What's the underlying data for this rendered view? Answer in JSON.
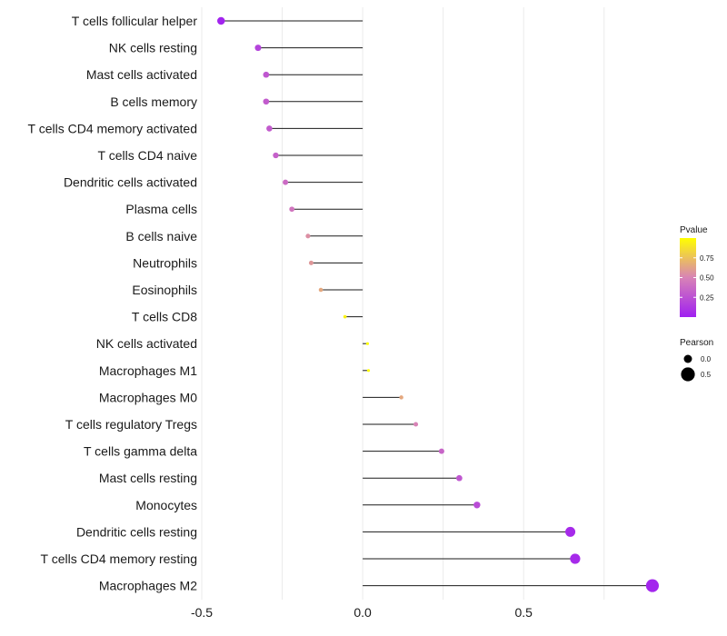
{
  "chart_data": {
    "type": "lollipop",
    "title": "",
    "xlabel": "",
    "ylabel": "",
    "xlim": [
      -0.5,
      0.92
    ],
    "x_ticks": [
      -0.5,
      0.0,
      0.5
    ],
    "x_tick_labels": [
      "-0.5",
      "0.0",
      "0.5"
    ],
    "x_minor_gridlines": [
      -0.25,
      0.25,
      0.75
    ],
    "baseline": 0,
    "categories": [
      "T cells follicular helper",
      "NK cells resting",
      "Mast cells activated",
      "B cells memory",
      "T cells CD4 memory activated",
      "T cells CD4 naive",
      "Dendritic cells activated",
      "Plasma cells",
      "B cells naive",
      "Neutrophils",
      "Eosinophils",
      "T cells CD8",
      "NK cells activated",
      "Macrophages M1",
      "Macrophages M0",
      "T cells regulatory  Tregs",
      "T cells gamma delta",
      "Mast cells resting",
      "Monocytes",
      "Dendritic cells resting",
      "T cells CD4 memory resting",
      "Macrophages M2"
    ],
    "pearson": [
      -0.44,
      -0.325,
      -0.3,
      -0.3,
      -0.29,
      -0.27,
      -0.24,
      -0.22,
      -0.17,
      -0.16,
      -0.13,
      -0.055,
      0.015,
      0.018,
      0.12,
      0.165,
      0.245,
      0.3,
      0.355,
      0.645,
      0.66,
      0.9
    ],
    "pvalue": [
      0.02,
      0.18,
      0.28,
      0.3,
      0.3,
      0.33,
      0.38,
      0.43,
      0.55,
      0.58,
      0.65,
      0.95,
      1.0,
      1.0,
      0.65,
      0.5,
      0.35,
      0.28,
      0.22,
      0.05,
      0.05,
      0.03
    ],
    "legend_color": {
      "title": "Pvalue",
      "breaks": [
        0.25,
        0.5,
        0.75
      ],
      "break_labels": [
        "0.25",
        "0.50",
        "0.75"
      ],
      "range": [
        0.0,
        1.0
      ],
      "low_color": "#a020f0",
      "mid_color": "#d883b6",
      "high_color": "#ffff00",
      "placement": "right"
    },
    "legend_size": {
      "title": "Pearson",
      "breaks": [
        0.0,
        0.5
      ],
      "break_labels": [
        "0.0",
        "0.5"
      ],
      "placement": "right"
    }
  }
}
